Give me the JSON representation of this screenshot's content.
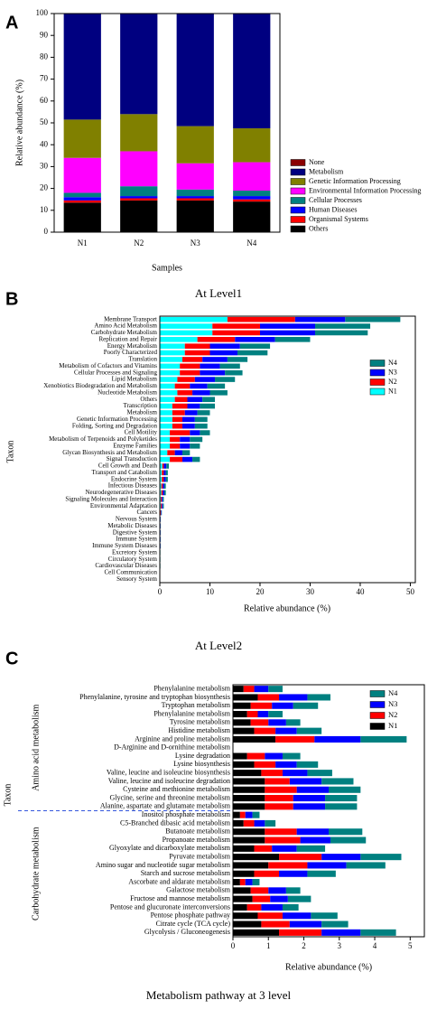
{
  "chart_data": [
    {
      "label": "A",
      "type": "bar",
      "orientation": "vertical",
      "stacked": true,
      "title": "At Level1",
      "xlabel": "Samples",
      "ylabel": "Relative abundance (%)",
      "categories": [
        "N1",
        "N2",
        "N3",
        "N4"
      ],
      "ylim": [
        0,
        100
      ],
      "yticks": [
        0,
        10,
        20,
        30,
        40,
        50,
        60,
        70,
        80,
        90,
        100
      ],
      "series": [
        {
          "name": "Others",
          "color": "#000000",
          "values": [
            13.5,
            14.5,
            14.5,
            14
          ]
        },
        {
          "name": "Organismal Systems",
          "color": "#ff0000",
          "values": [
            1,
            1,
            1,
            1
          ]
        },
        {
          "name": "Human Diseases",
          "color": "#0000ff",
          "values": [
            1.5,
            1,
            1,
            1.5
          ]
        },
        {
          "name": "Cellular Processes",
          "color": "#008080",
          "values": [
            2,
            4.5,
            3,
            2.5
          ]
        },
        {
          "name": "Environmental Information Processing",
          "color": "#ff00ff",
          "values": [
            16,
            16,
            12,
            13
          ]
        },
        {
          "name": "Genetic Information Processing",
          "color": "#808000",
          "values": [
            17.5,
            17,
            17,
            15.5
          ]
        },
        {
          "name": "Metabolism",
          "color": "#000080",
          "values": [
            48.3,
            45.8,
            51.3,
            52.3
          ]
        },
        {
          "name": "None",
          "color": "#8b0000",
          "values": [
            0.2,
            0.2,
            0.2,
            0.2
          ]
        }
      ]
    },
    {
      "label": "B",
      "type": "bar",
      "orientation": "horizontal",
      "stacked": true,
      "title": "At Level2",
      "xlabel": "Relative abundance (%)",
      "ylabel": "Taxon",
      "categories": [
        "Membrane Transport",
        "Amino Acid Metabolism",
        "Carbohydrate Metabolism",
        "Replication and Repair",
        "Energy Metabolism",
        "Poorly Characterized",
        "Translation",
        "Metabolism of Cofactors and Vitamins",
        "Cellular Processes and Signaling",
        "Lipid Metabolism",
        "Xenobiotics Biodegradation and Metabolism",
        "Nucleotide Metabolism",
        "Others",
        "Transcription",
        "Metabolism",
        "Genetic Information Processing",
        "Folding, Sorting and Degradation",
        "Cell Motility",
        "Metabolism of Terpenoids and Polyketides",
        "Enzyme Families",
        "Glycan Biosynthesis and Metabolism",
        "Signal Transduction",
        "Cell Growth and Death",
        "Transport and Catabolism",
        "Endocrine System",
        "Infectious Diseases",
        "Neurodegenerative Diseases",
        "Signaling Molecules and Interaction",
        "Environmental Adaptation",
        "Cancers",
        "Nervous System",
        "Metabolic Diseases",
        "Digestive System",
        "Immune System",
        "Immune System Diseases",
        "Excretory System",
        "Circulatory System",
        "Cardiovascular Diseases",
        "Cell Communication",
        "Sensory System"
      ],
      "xlim": [
        0,
        51
      ],
      "xticks": [
        0,
        10,
        20,
        30,
        40,
        50
      ],
      "series": [
        {
          "name": "N1",
          "color": "#00ffff",
          "values": [
            13.5,
            10.5,
            10.5,
            7.5,
            5,
            5,
            4.5,
            4,
            4,
            3.5,
            3,
            3.5,
            3,
            2.5,
            2.5,
            2.5,
            2.5,
            2,
            2,
            2,
            1.5,
            2,
            0.5,
            0.4,
            0.4,
            0.3,
            0.3,
            0.2,
            0.2,
            0.1,
            0.05,
            0.05,
            0.05,
            0.05,
            0.05,
            0.03,
            0.03,
            0.03,
            0.02,
            0.02
          ]
        },
        {
          "name": "N2",
          "color": "#ff0000",
          "values": [
            13.5,
            9.5,
            9.5,
            7.5,
            5,
            5,
            4,
            4,
            4,
            3.5,
            3,
            3,
            2.5,
            3,
            2.5,
            2,
            2,
            4,
            2,
            2,
            1.5,
            2.5,
            0.3,
            0.4,
            0.4,
            0.3,
            0.3,
            0.2,
            0.2,
            0.1,
            0.05,
            0.05,
            0.05,
            0.05,
            0.05,
            0.03,
            0.03,
            0.03,
            0.02,
            0.02
          ]
        },
        {
          "name": "N3",
          "color": "#0000ff",
          "values": [
            10,
            11,
            11,
            8,
            6,
            5.5,
            5,
            4,
            5,
            4,
            3.5,
            3.5,
            3,
            2.5,
            2.5,
            2.5,
            2.5,
            2,
            2,
            2,
            1.5,
            2,
            0.5,
            0.4,
            0.4,
            0.3,
            0.3,
            0.2,
            0.2,
            0.1,
            0.05,
            0.05,
            0.05,
            0.05,
            0.05,
            0.03,
            0.03,
            0.03,
            0.02,
            0.02
          ]
        },
        {
          "name": "N4",
          "color": "#008080",
          "values": [
            11,
            11,
            10.5,
            7,
            6,
            6,
            4,
            4,
            3.5,
            4,
            3.5,
            3.5,
            2.5,
            3,
            2.5,
            2.5,
            2.5,
            2,
            2.5,
            2,
            1.5,
            1.5,
            0.5,
            0.4,
            0.4,
            0.3,
            0.3,
            0.2,
            0.2,
            0.1,
            0.05,
            0.05,
            0.05,
            0.05,
            0.05,
            0.03,
            0.03,
            0.03,
            0.02,
            0.02
          ]
        }
      ]
    },
    {
      "label": "C",
      "type": "bar",
      "orientation": "horizontal",
      "stacked": true,
      "title": "Metabolism pathway at 3 level",
      "xlabel": "Relative abundance (%)",
      "ylabel": "Taxon",
      "groups": [
        {
          "name": "Amino acid metabolism",
          "categories": [
            "Phenylalanine metabolism",
            "Phenylalanine, tyrosine and tryptophan biosynthesis",
            "Tryptophan metabolism",
            "Phenylalanine metabolism",
            "Tyrosine metabolism",
            "Histidine metabolism",
            "Arginine and proline metabolism",
            "D-Arginine and D-ornithine metabolism",
            "Lysine degradation",
            "Lysine biosynthesis",
            "Valine, leucine and isoleucine biosynthesis",
            "Valine, leucine and isoleucine degradation",
            "Cysteine and methionine metabolism",
            "Glycine, serine and threonine metabolism",
            "Alanine, aspartate and glutamate metabolism"
          ]
        },
        {
          "name": "Carbohydrate metabolism",
          "categories": [
            "Inositol phosphate metabolism",
            "C5-Branched dibasic acid metabolism",
            "Butanoate metabolism",
            "Propanoate metabolism",
            "Glyoxylate and dicarboxylate metabolism",
            "Pyruvate metabolism",
            "Amino sugar and nucleotide sugar metabolism",
            "Starch and sucrose metabolism",
            "Ascorbate and aldarate metabolism",
            "Galactose metabolism",
            "Fructose and mannose metabolism",
            "Pentose and glucuronate interconversions",
            "Pentose phosphate pathway",
            "Citrate cycle (TCA cycle)",
            "Glycolysis / Gluconeogenesis"
          ]
        }
      ],
      "xlim": [
        0,
        5.4
      ],
      "xticks": [
        0,
        1,
        2,
        3,
        4,
        5
      ],
      "series": [
        {
          "name": "N1",
          "color": "#000000",
          "values": [
            0.3,
            0.7,
            0.5,
            0.4,
            0.5,
            0.6,
            1.2,
            0,
            0.4,
            0.6,
            0.8,
            0.9,
            0.9,
            0.9,
            0.9,
            0.2,
            0.3,
            0.9,
            0.9,
            0.6,
            1.3,
            1.0,
            0.6,
            0.2,
            0.5,
            0.55,
            0.4,
            0.7,
            0.8,
            1.3
          ]
        },
        {
          "name": "N2",
          "color": "#ff0000",
          "values": [
            0.3,
            0.6,
            0.6,
            0.3,
            0.5,
            0.6,
            1.1,
            0,
            0.5,
            0.6,
            0.6,
            0.7,
            0.9,
            0.8,
            0.8,
            0.15,
            0.3,
            0.9,
            1.0,
            0.5,
            1.2,
            1.1,
            0.7,
            0.15,
            0.5,
            0.5,
            0.4,
            0.7,
            0.8,
            1.2
          ]
        },
        {
          "name": "N3",
          "color": "#0000ff",
          "values": [
            0.4,
            0.8,
            0.6,
            0.3,
            0.5,
            0.6,
            1.3,
            0,
            0.5,
            0.6,
            0.7,
            0.9,
            0.9,
            0.9,
            0.9,
            0.2,
            0.3,
            0.9,
            0.85,
            0.7,
            1.1,
            1.1,
            0.8,
            0.2,
            0.5,
            0.5,
            0.6,
            0.8,
            0.9,
            1.1
          ]
        },
        {
          "name": "N4",
          "color": "#008080",
          "values": [
            0.4,
            0.65,
            0.7,
            0.4,
            0.4,
            0.7,
            1.3,
            0,
            0.5,
            0.6,
            0.7,
            0.9,
            0.9,
            0.9,
            0.9,
            0.2,
            0.3,
            0.95,
            1.0,
            0.8,
            1.15,
            1.1,
            0.8,
            0.2,
            0.4,
            0.65,
            0.45,
            0.75,
            0.75,
            1.0
          ]
        }
      ]
    }
  ]
}
